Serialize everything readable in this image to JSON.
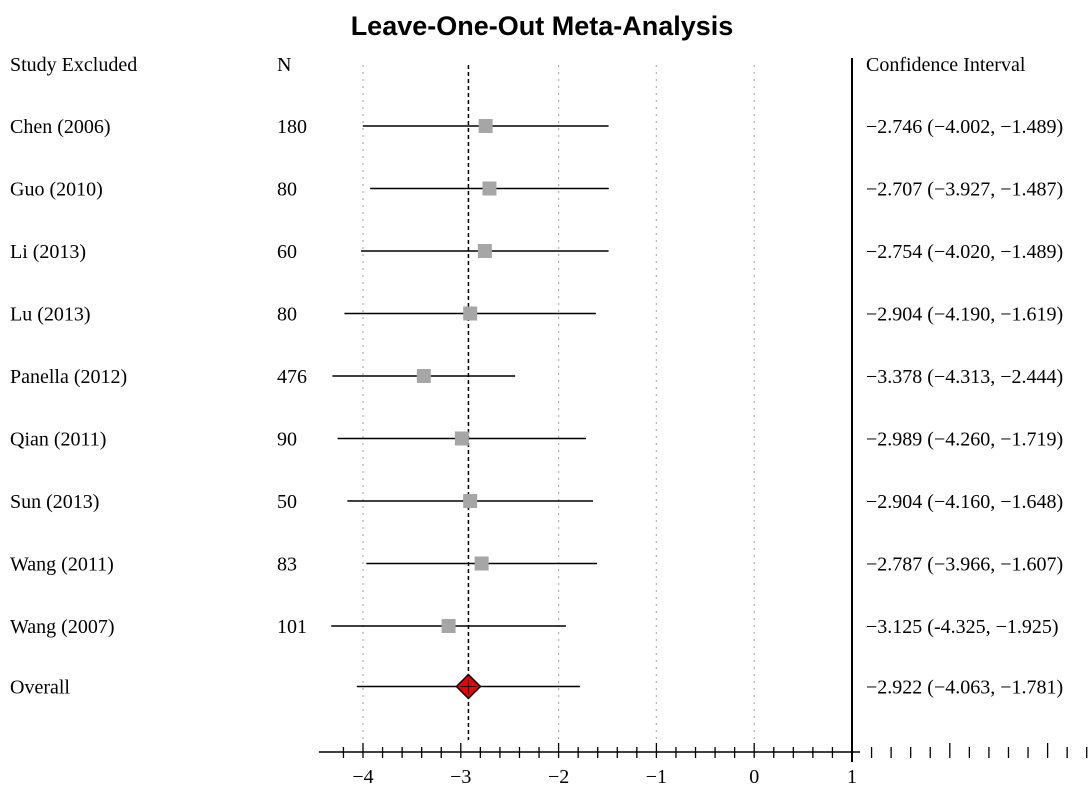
{
  "chart_data": {
    "type": "forest",
    "title": "Leave-One-Out Meta-Analysis",
    "headers": {
      "study": "Study Excluded",
      "n": "N",
      "ci": "Confidence Interval"
    },
    "rows": [
      {
        "label": "Chen (2006)",
        "n": "180",
        "estimate": -2.746,
        "lower": -4.002,
        "upper": -1.489,
        "ci_text": "−2.746 (−4.002, −1.489)"
      },
      {
        "label": "Guo (2010)",
        "n": "80",
        "estimate": -2.707,
        "lower": -3.927,
        "upper": -1.487,
        "ci_text": "−2.707 (−3.927, −1.487)"
      },
      {
        "label": "Li (2013)",
        "n": "60",
        "estimate": -2.754,
        "lower": -4.02,
        "upper": -1.489,
        "ci_text": "−2.754 (−4.020, −1.489)"
      },
      {
        "label": "Lu (2013)",
        "n": "80",
        "estimate": -2.904,
        "lower": -4.19,
        "upper": -1.619,
        "ci_text": "−2.904 (−4.190, −1.619)"
      },
      {
        "label": "Panella (2012)",
        "n": "476",
        "estimate": -3.378,
        "lower": -4.313,
        "upper": -2.444,
        "ci_text": "−3.378 (−4.313, −2.444)"
      },
      {
        "label": "Qian (2011)",
        "n": "90",
        "estimate": -2.989,
        "lower": -4.26,
        "upper": -1.719,
        "ci_text": "−2.989 (−4.260, −1.719)"
      },
      {
        "label": "Sun (2013)",
        "n": "50",
        "estimate": -2.904,
        "lower": -4.16,
        "upper": -1.648,
        "ci_text": "−2.904 (−4.160, −1.648)"
      },
      {
        "label": "Wang (2011)",
        "n": "83",
        "estimate": -2.787,
        "lower": -3.966,
        "upper": -1.607,
        "ci_text": "−2.787 (−3.966, −1.607)"
      },
      {
        "label": "Wang (2007)",
        "n": "101",
        "estimate": -3.125,
        "lower": -4.325,
        "upper": -1.925,
        "ci_text": "−3.125 (-4.325, −1.925)"
      }
    ],
    "overall": {
      "label": "Overall",
      "estimate": -2.922,
      "lower": -4.063,
      "upper": -1.781,
      "ci_text": "−2.922 (−4.063, −1.781)"
    },
    "xlim": [
      -4.4,
      1
    ],
    "xticks": [
      -4,
      -3,
      -2,
      -1,
      0,
      1
    ],
    "xtick_labels": [
      "−4",
      "−3",
      "−2",
      "−1",
      "0",
      "1"
    ],
    "gridlines_dotted": [
      -4,
      -2,
      -1,
      0
    ],
    "reference_line_dashed": -2.922,
    "marker_color": "#a6a6a6",
    "overall_color": "#ee0000"
  }
}
